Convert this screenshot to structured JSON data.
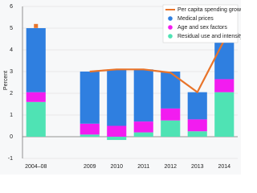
{
  "chart_data": {
    "type": "bar",
    "stacked": true,
    "y_label": "Percent",
    "categories": [
      "2004–08",
      null,
      "2009",
      "2010",
      "2011",
      "2012",
      "2013",
      "2014"
    ],
    "series": [
      {
        "name": "Residual use and intensity",
        "color": "#4fe3b4",
        "values": [
          1.6,
          null,
          0.1,
          -0.15,
          0.2,
          0.75,
          0.25,
          2.05
        ]
      },
      {
        "name": "Age and sex factors",
        "color": "#f21cf0",
        "values": [
          0.45,
          null,
          0.5,
          0.5,
          0.5,
          0.55,
          0.55,
          0.6
        ]
      },
      {
        "name": "Medical prices",
        "color": "#2f7fe0",
        "values": [
          2.95,
          null,
          2.4,
          2.6,
          2.4,
          1.7,
          1.25,
          1.75
        ]
      },
      {
        "name": "Per capita spending growth",
        "type": "line",
        "color": "#e8742a",
        "values": [
          5.1,
          null,
          3.0,
          3.1,
          3.1,
          2.95,
          2.05,
          4.45
        ]
      }
    ],
    "ylim": [
      -1,
      6
    ],
    "yticks": [
      -1,
      0,
      1,
      2,
      3,
      4,
      5,
      6
    ],
    "grid": true,
    "legend": "top-right"
  }
}
